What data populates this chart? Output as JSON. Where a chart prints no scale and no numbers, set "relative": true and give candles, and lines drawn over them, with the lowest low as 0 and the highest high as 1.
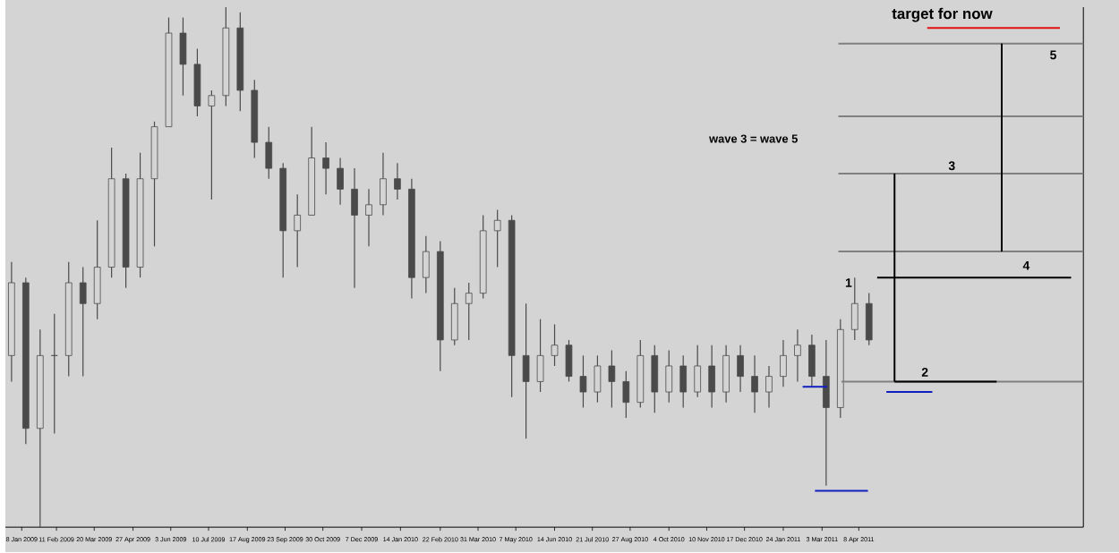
{
  "chart_data": {
    "type": "candlestick",
    "relative": true,
    "color": "#4a4a4a",
    "xlim": [
      "2008-12-23",
      "2011-11-14"
    ],
    "xticks": [
      {
        "value": "2009-01-08",
        "label": "8 Jan 2009"
      },
      {
        "value": "2009-02-11",
        "label": "11 Feb 2009"
      },
      {
        "value": "2009-03-20",
        "label": "20 Mar 2009"
      },
      {
        "value": "2009-04-27",
        "label": "27 Apr 2009"
      },
      {
        "value": "2009-06-03",
        "label": "3 Jun 2009"
      },
      {
        "value": "2009-07-10",
        "label": "10 Jul 2009"
      },
      {
        "value": "2009-08-17",
        "label": "17 Aug 2009"
      },
      {
        "value": "2009-09-23",
        "label": "23 Sep 2009"
      },
      {
        "value": "2009-10-30",
        "label": "30 Oct 2009"
      },
      {
        "value": "2009-12-07",
        "label": "7 Dec 2009"
      },
      {
        "value": "2010-01-14",
        "label": "14 Jan 2010"
      },
      {
        "value": "2010-02-22",
        "label": "22 Feb 2010"
      },
      {
        "value": "2010-03-31",
        "label": "31 Mar 2010"
      },
      {
        "value": "2010-05-07",
        "label": "7 May 2010"
      },
      {
        "value": "2010-06-14",
        "label": "14 Jun 2010"
      },
      {
        "value": "2010-07-21",
        "label": "21 Jul 2010"
      },
      {
        "value": "2010-08-27",
        "label": "27 Aug 2010"
      },
      {
        "value": "2010-10-04",
        "label": "4 Oct 2010"
      },
      {
        "value": "2010-11-10",
        "label": "10 Nov 2010"
      },
      {
        "value": "2010-12-17",
        "label": "17 Dec 2010"
      },
      {
        "value": "2011-01-24",
        "label": "24 Jan 2011"
      },
      {
        "value": "2011-03-03",
        "label": "3 Mar 2011"
      },
      {
        "value": "2011-04-08",
        "label": "8 Apr 2011"
      }
    ],
    "x": [
      "2008-12-29",
      "2009-01-12",
      "2009-01-26",
      "2009-02-09",
      "2009-02-23",
      "2009-03-09",
      "2009-03-23",
      "2009-04-06",
      "2009-04-20",
      "2009-05-04",
      "2009-05-18",
      "2009-06-01",
      "2009-06-15",
      "2009-06-29",
      "2009-07-13",
      "2009-07-27",
      "2009-08-10",
      "2009-08-24",
      "2009-09-07",
      "2009-09-21",
      "2009-10-05",
      "2009-10-19",
      "2009-11-02",
      "2009-11-16",
      "2009-11-30",
      "2009-12-14",
      "2009-12-28",
      "2010-01-11",
      "2010-01-25",
      "2010-02-08",
      "2010-02-22",
      "2010-03-08",
      "2010-03-22",
      "2010-04-05",
      "2010-04-19",
      "2010-05-03",
      "2010-05-17",
      "2010-05-31",
      "2010-06-14",
      "2010-06-28",
      "2010-07-12",
      "2010-07-26",
      "2010-08-09",
      "2010-08-23",
      "2010-09-06",
      "2010-09-20",
      "2010-10-04",
      "2010-10-18",
      "2010-11-01",
      "2010-11-15",
      "2010-11-29",
      "2010-12-13",
      "2010-12-27",
      "2011-01-10",
      "2011-01-24",
      "2011-02-07",
      "2011-02-21",
      "2011-03-07",
      "2011-03-21",
      "2011-04-04",
      "2011-04-18"
    ],
    "ohlc": [
      [
        0.33,
        0.51,
        0.28,
        0.47
      ],
      [
        0.47,
        0.48,
        0.16,
        0.19
      ],
      [
        0.19,
        0.38,
        0,
        0.33
      ],
      [
        0.33,
        0.41,
        0.18,
        0.33
      ],
      [
        0.33,
        0.51,
        0.29,
        0.47
      ],
      [
        0.47,
        0.5,
        0.29,
        0.43
      ],
      [
        0.43,
        0.59,
        0.4,
        0.5
      ],
      [
        0.5,
        0.73,
        0.48,
        0.67
      ],
      [
        0.67,
        0.68,
        0.46,
        0.5
      ],
      [
        0.5,
        0.72,
        0.48,
        0.67
      ],
      [
        0.67,
        0.78,
        0.54,
        0.77
      ],
      [
        0.77,
        0.98,
        0.77,
        0.95
      ],
      [
        0.95,
        0.98,
        0.83,
        0.89
      ],
      [
        0.89,
        0.92,
        0.79,
        0.81
      ],
      [
        0.81,
        0.84,
        0.63,
        0.83
      ],
      [
        0.83,
        1,
        0.81,
        0.96
      ],
      [
        0.96,
        0.99,
        0.8,
        0.84
      ],
      [
        0.84,
        0.86,
        0.71,
        0.74
      ],
      [
        0.74,
        0.77,
        0.67,
        0.69
      ],
      [
        0.69,
        0.7,
        0.48,
        0.57
      ],
      [
        0.57,
        0.64,
        0.5,
        0.6
      ],
      [
        0.6,
        0.77,
        0.6,
        0.71
      ],
      [
        0.71,
        0.74,
        0.64,
        0.69
      ],
      [
        0.69,
        0.71,
        0.62,
        0.65
      ],
      [
        0.65,
        0.69,
        0.46,
        0.6
      ],
      [
        0.6,
        0.65,
        0.54,
        0.62
      ],
      [
        0.62,
        0.72,
        0.6,
        0.67
      ],
      [
        0.67,
        0.7,
        0.63,
        0.65
      ],
      [
        0.65,
        0.67,
        0.44,
        0.48
      ],
      [
        0.48,
        0.56,
        0.45,
        0.53
      ],
      [
        0.53,
        0.55,
        0.3,
        0.36
      ],
      [
        0.36,
        0.46,
        0.35,
        0.43
      ],
      [
        0.43,
        0.47,
        0.36,
        0.45
      ],
      [
        0.45,
        0.6,
        0.44,
        0.57
      ],
      [
        0.57,
        0.61,
        0.5,
        0.59
      ],
      [
        0.59,
        0.6,
        0.25,
        0.33
      ],
      [
        0.33,
        0.43,
        0.17,
        0.28
      ],
      [
        0.28,
        0.4,
        0.26,
        0.33
      ],
      [
        0.33,
        0.39,
        0.31,
        0.35
      ],
      [
        0.35,
        0.36,
        0.28,
        0.29
      ],
      [
        0.29,
        0.33,
        0.23,
        0.26
      ],
      [
        0.26,
        0.33,
        0.24,
        0.31
      ],
      [
        0.31,
        0.34,
        0.23,
        0.28
      ],
      [
        0.28,
        0.3,
        0.21,
        0.24
      ],
      [
        0.24,
        0.36,
        0.23,
        0.33
      ],
      [
        0.33,
        0.35,
        0.22,
        0.26
      ],
      [
        0.26,
        0.34,
        0.24,
        0.31
      ],
      [
        0.31,
        0.33,
        0.23,
        0.26
      ],
      [
        0.26,
        0.35,
        0.25,
        0.31
      ],
      [
        0.31,
        0.35,
        0.23,
        0.26
      ],
      [
        0.26,
        0.35,
        0.24,
        0.33
      ],
      [
        0.33,
        0.35,
        0.26,
        0.29
      ],
      [
        0.29,
        0.33,
        0.22,
        0.26
      ],
      [
        0.26,
        0.31,
        0.23,
        0.29
      ],
      [
        0.29,
        0.36,
        0.27,
        0.33
      ],
      [
        0.33,
        0.38,
        0.28,
        0.35
      ],
      [
        0.35,
        0.37,
        0.27,
        0.29
      ],
      [
        0.29,
        0.36,
        0.08,
        0.23
      ],
      [
        0.23,
        0.4,
        0.21,
        0.38
      ],
      [
        0.38,
        0.48,
        0.36,
        0.43
      ],
      [
        0.43,
        0.45,
        0.35,
        0.36
      ]
    ],
    "series": [
      {
        "type": "line",
        "color": "#808080",
        "x": [
          "2011-03-19",
          "2011-11-14"
        ],
        "values": [
          0.93,
          0.93
        ]
      },
      {
        "type": "line",
        "color": "#808080",
        "x": [
          "2011-03-19",
          "2011-11-14"
        ],
        "values": [
          0.79,
          0.79
        ]
      },
      {
        "type": "line",
        "color": "#808080",
        "x": [
          "2011-03-19",
          "2011-11-14"
        ],
        "values": [
          0.68,
          0.68
        ]
      },
      {
        "type": "line",
        "color": "#808080",
        "x": [
          "2011-03-19",
          "2011-11-14"
        ],
        "values": [
          0.53,
          0.53
        ]
      },
      {
        "type": "line",
        "color": "#808080",
        "x": [
          "2011-03-22",
          "2011-11-14"
        ],
        "values": [
          0.28,
          0.28
        ]
      },
      {
        "type": "line",
        "color": "#000000",
        "x": [
          "2011-05-13",
          "2011-08-21"
        ],
        "values": [
          0.28,
          0.28
        ]
      },
      {
        "type": "line",
        "color": "#000000",
        "x": [
          "2011-04-26",
          "2011-11-02"
        ],
        "values": [
          0.48,
          0.48
        ]
      },
      {
        "type": "line",
        "color": "#000000",
        "x": [
          "2011-05-13",
          "2011-05-13"
        ],
        "values": [
          0.28,
          0.68
        ]
      },
      {
        "type": "line",
        "color": "#000000",
        "x": [
          "2011-08-26",
          "2011-08-26"
        ],
        "values": [
          0.53,
          0.93
        ]
      },
      {
        "type": "line",
        "color": "#e01010",
        "x": [
          "2011-06-14",
          "2011-10-22"
        ],
        "values": [
          0.96,
          0.96
        ]
      },
      {
        "type": "line",
        "color": "#1020c0",
        "x": [
          "2011-02-12",
          "2011-03-08"
        ],
        "values": [
          0.27,
          0.27
        ]
      },
      {
        "type": "line",
        "color": "#1020c0",
        "x": [
          "2011-05-05",
          "2011-06-19"
        ],
        "values": [
          0.26,
          0.26
        ]
      },
      {
        "type": "line",
        "color": "#1020c0",
        "x": [
          "2011-02-24",
          "2011-04-17"
        ],
        "values": [
          0.07,
          0.07
        ]
      }
    ],
    "annotations": [
      "wave 3 = wave 5",
      "target for now",
      {
        "text": "1",
        "x": "2011-03-29",
        "y": 0.47
      },
      "2",
      "3",
      "4",
      "5"
    ]
  }
}
